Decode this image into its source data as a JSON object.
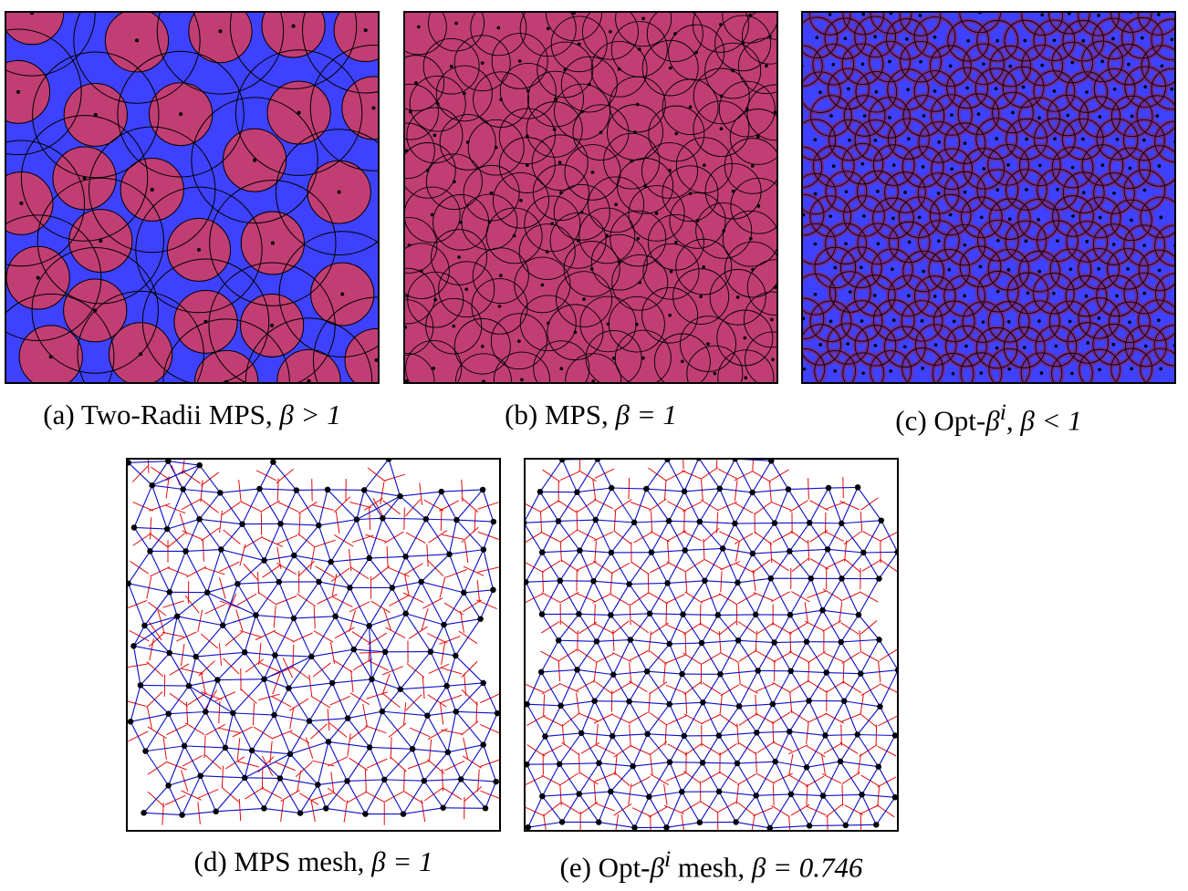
{
  "colors": {
    "disk_fill": "#c13e74",
    "background_blue": "#3e42ff",
    "circle_stroke": "#000000",
    "dual_cell_red": "#e01010",
    "delaunay_blue": "#0a10c8",
    "point_black": "#000000"
  },
  "figure": {
    "panels": [
      {
        "id": "a",
        "caption_prefix": "(a) Two-Radii MPS, ",
        "caption_math": "β > 1"
      },
      {
        "id": "b",
        "caption_prefix": "(b) MPS, ",
        "caption_math": "β = 1"
      },
      {
        "id": "c",
        "caption_prefix": "(c) Opt-",
        "caption_math": "β",
        "caption_sup": "i",
        "caption_suffix": ", ",
        "caption_math2": "β < 1"
      },
      {
        "id": "d",
        "caption_prefix": "(d) MPS mesh, ",
        "caption_math": "β = 1"
      },
      {
        "id": "e",
        "caption_prefix": "(e) Opt-",
        "caption_math": "β",
        "caption_sup": "i",
        "caption_suffix": " mesh, ",
        "caption_math2": "β = 0.746"
      }
    ]
  }
}
